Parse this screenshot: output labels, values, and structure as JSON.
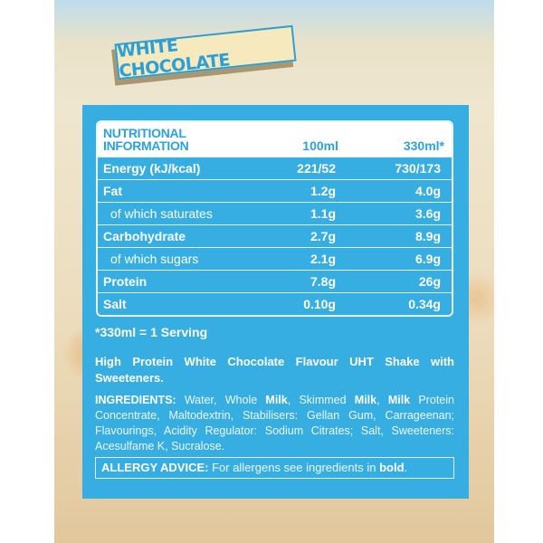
{
  "badge": "WHITE CHOCOLATE",
  "nutrition": {
    "title_line1": "NUTRITIONAL",
    "title_line2": "INFORMATION",
    "col1": "100ml",
    "col2": "330ml*",
    "rows": [
      {
        "label": "Energy (kJ/kcal)",
        "per100": "221/52",
        "per330": "730/173"
      },
      {
        "label": "Fat",
        "per100": "1.2g",
        "per330": "4.0g"
      },
      {
        "label": "of which saturates",
        "per100": "1.1g",
        "per330": "3.6g"
      },
      {
        "label": "Carbohydrate",
        "per100": "2.7g",
        "per330": "8.9g"
      },
      {
        "label": "of which sugars",
        "per100": "2.1g",
        "per330": "6.9g"
      },
      {
        "label": "Protein",
        "per100": "7.8g",
        "per330": "26g"
      },
      {
        "label": "Salt",
        "per100": "0.10g",
        "per330": "0.34g"
      }
    ],
    "serving_note": "*330ml = 1 Serving"
  },
  "description": "High Protein White Chocolate Flavour UHT Shake with Sweeteners.",
  "ingredients": {
    "label": "INGREDIENTS:",
    "p1": " Water, Whole ",
    "b1": "Milk",
    "p2": ", Skimmed ",
    "b2": "Milk",
    "p3": ", ",
    "b3": "Milk",
    "p4": " Protein Concentrate, Maltodextrin, Stabilisers: Gellan Gum, Carrageenan; Flavourings, Acidity Regulator: Sodium Citrates; Salt, Sweeteners: Acesulfame K, Sucralose."
  },
  "allergy": {
    "label": "ALLERGY ADVICE:",
    "text": " For allergens see ingredients in ",
    "bold": "bold",
    "end": "."
  },
  "colors": {
    "panel": "#36aee2",
    "header_text": "#2aa3dc",
    "badge_bg": "#f6e9bd"
  }
}
